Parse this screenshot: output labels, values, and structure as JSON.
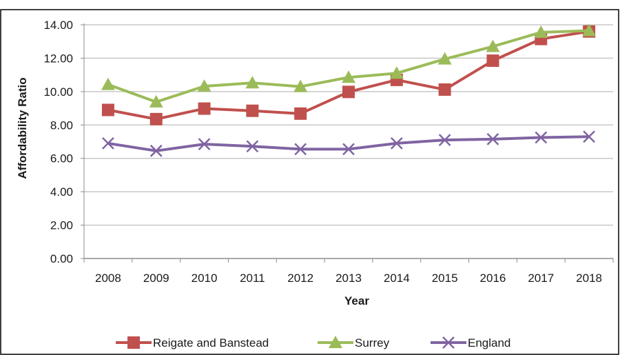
{
  "chart_data": {
    "type": "line",
    "title": "",
    "xlabel": "Year",
    "ylabel": "Affordability Ratio",
    "x": [
      "2008",
      "2009",
      "2010",
      "2011",
      "2012",
      "2013",
      "2014",
      "2015",
      "2016",
      "2017",
      "2018"
    ],
    "ylim": [
      0,
      14
    ],
    "yticks": [
      "0.00",
      "2.00",
      "4.00",
      "6.00",
      "8.00",
      "10.00",
      "12.00",
      "14.00"
    ],
    "grid": true,
    "legend": "bottom",
    "series": [
      {
        "name": "Reigate and Banstead",
        "color": "#c0504d",
        "marker": "square",
        "values": [
          8.9,
          8.35,
          8.98,
          8.85,
          8.68,
          9.98,
          10.7,
          10.12,
          11.85,
          13.15,
          13.6
        ]
      },
      {
        "name": "Surrey",
        "color": "#9bbb59",
        "marker": "triangle",
        "values": [
          10.42,
          9.38,
          10.32,
          10.52,
          10.3,
          10.85,
          11.1,
          11.95,
          12.7,
          13.55,
          13.65
        ]
      },
      {
        "name": "England",
        "color": "#8064a2",
        "marker": "cross",
        "values": [
          6.9,
          6.45,
          6.85,
          6.72,
          6.55,
          6.55,
          6.9,
          7.1,
          7.15,
          7.25,
          7.3
        ]
      }
    ]
  }
}
